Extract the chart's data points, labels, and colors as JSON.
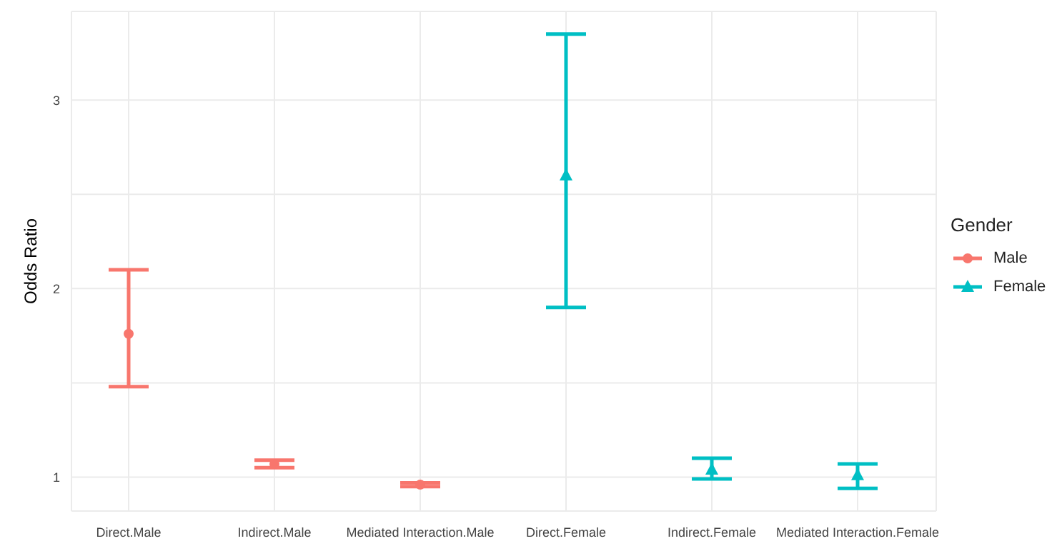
{
  "chart_data": {
    "type": "scatter",
    "ylabel": "Odds Ratio",
    "legend_title": "Gender",
    "categories": [
      "Direct.Male",
      "Indirect.Male",
      "Mediated Interaction.Male",
      "Direct.Female",
      "Indirect.Female",
      "Mediated Interaction.Female"
    ],
    "series": [
      {
        "name": "Male",
        "color": "#f8766d",
        "marker": "circle",
        "values": [
          1.76,
          1.07,
          0.96,
          null,
          null,
          null
        ],
        "errors": [
          [
            1.48,
            2.1
          ],
          [
            1.05,
            1.09
          ],
          [
            0.95,
            0.97
          ],
          null,
          null,
          null
        ]
      },
      {
        "name": "Female",
        "color": "#00bfc4",
        "marker": "triangle",
        "values": [
          null,
          null,
          null,
          2.6,
          1.04,
          1.01
        ],
        "errors": [
          null,
          null,
          null,
          [
            1.9,
            3.35
          ],
          [
            0.99,
            1.1
          ],
          [
            0.94,
            1.07
          ]
        ]
      }
    ],
    "ylim": [
      0.82,
      3.47
    ],
    "yticks": [
      1,
      {
        "value": 1.5,
        "label": null
      },
      2,
      {
        "value": 2.5,
        "label": null
      },
      3
    ],
    "grid": true,
    "legend": "right"
  }
}
